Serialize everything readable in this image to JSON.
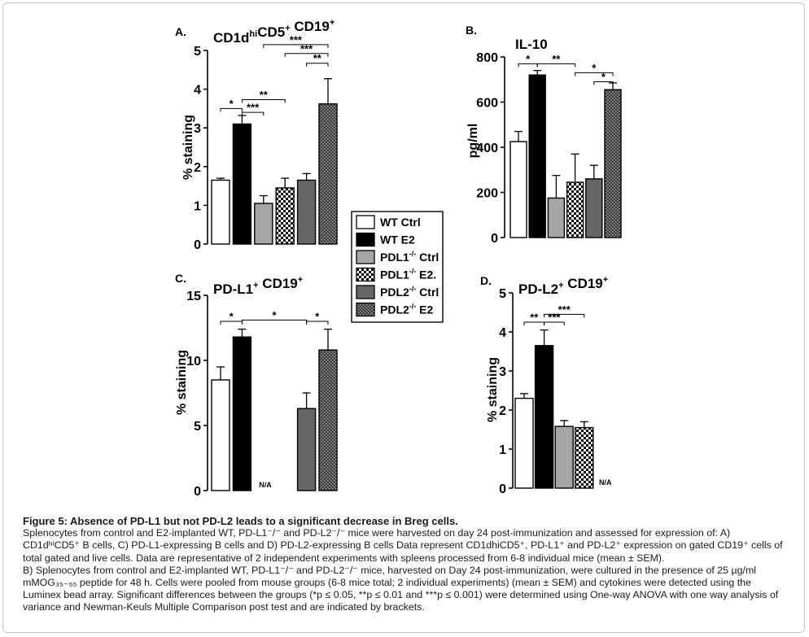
{
  "colors": {
    "wt_ctrl": "#ffffff",
    "wt_e2": "#000000",
    "pdl1_ctrl": "#a6a6a6",
    "pdl1_e2": "checker",
    "pdl2_ctrl": "#666666",
    "pdl2_e2": "dotted-dark"
  },
  "legend": {
    "items": [
      {
        "key": "wt_ctrl",
        "label": "WT Ctrl",
        "sup": "",
        "label2": ""
      },
      {
        "key": "wt_e2",
        "label": "WT  E2",
        "sup": "",
        "label2": ""
      },
      {
        "key": "pdl1_ctrl",
        "label": "PDL1",
        "sup": "-/-",
        "label2": " Ctrl"
      },
      {
        "key": "pdl1_e2",
        "label": "PDL1",
        "sup": "-/-",
        "label2": " E2."
      },
      {
        "key": "pdl2_ctrl",
        "label": "PDL2",
        "sup": "-/-",
        "label2": " Ctrl"
      },
      {
        "key": "pdl2_e2",
        "label": "PDL2",
        "sup": "-/-",
        "label2": " E2"
      }
    ]
  },
  "chart_data": [
    {
      "panel": "A.",
      "type": "bar",
      "title_parts": [
        {
          "t": "CD1d"
        },
        {
          "t": "hi",
          "sup": true
        },
        {
          "t": "CD5"
        },
        {
          "t": "+",
          "sup": true
        },
        {
          "t": " CD19"
        },
        {
          "t": "+",
          "sup": true
        }
      ],
      "ylabel": "% staining",
      "ylim": [
        0,
        5
      ],
      "yticks": [
        0,
        1,
        2,
        3,
        4,
        5
      ],
      "categories": [
        "WT Ctrl",
        "WT E2",
        "PDL1-/- Ctrl",
        "PDL1-/- E2",
        "PDL2-/- Ctrl",
        "PDL2-/- E2"
      ],
      "keys": [
        "wt_ctrl",
        "wt_e2",
        "pdl1_ctrl",
        "pdl1_e2",
        "pdl2_ctrl",
        "pdl2_e2"
      ],
      "values": [
        1.65,
        3.1,
        1.05,
        1.45,
        1.65,
        3.62
      ],
      "errors": [
        0.05,
        0.22,
        0.2,
        0.25,
        0.17,
        0.65
      ],
      "na": [],
      "brackets": [
        {
          "from": 0,
          "to": 1,
          "level": 3.5,
          "label": "*"
        },
        {
          "from": 1,
          "to": 2,
          "level": 3.4,
          "label": "***"
        },
        {
          "from": 1,
          "to": 3,
          "level": 3.73,
          "label": "**"
        },
        {
          "from": 4,
          "to": 5,
          "level": 4.67,
          "label": "**"
        },
        {
          "from": 3,
          "to": 5,
          "level": 4.92,
          "label": "***"
        },
        {
          "from": 2,
          "to": 5,
          "level": 5.15,
          "label": "***"
        }
      ]
    },
    {
      "panel": "B.",
      "type": "bar",
      "title_parts": [
        {
          "t": "IL-10"
        }
      ],
      "ylabel": "pg/ml",
      "ylim": [
        0,
        800
      ],
      "yticks": [
        0,
        200,
        400,
        600,
        800
      ],
      "categories": [
        "WT Ctrl",
        "WT E2",
        "PDL1-/- Ctrl",
        "PDL1-/- E2",
        "PDL2-/- Ctrl",
        "PDL2-/- E2"
      ],
      "keys": [
        "wt_ctrl",
        "wt_e2",
        "pdl1_ctrl",
        "pdl1_e2",
        "pdl2_ctrl",
        "pdl2_e2"
      ],
      "values": [
        425,
        720,
        175,
        245,
        260,
        655
      ],
      "errors": [
        45,
        20,
        100,
        125,
        60,
        30
      ],
      "na": [],
      "brackets": [
        {
          "from": 0,
          "to": 1,
          "level": 770,
          "label": "*"
        },
        {
          "from": 1,
          "to": 3,
          "level": 770,
          "label": "**"
        },
        {
          "from": 3,
          "to": 5,
          "level": 730,
          "label": "*"
        },
        {
          "from": 4,
          "to": 5,
          "level": 690,
          "label": "*"
        }
      ]
    },
    {
      "panel": "C.",
      "type": "bar",
      "title_parts": [
        {
          "t": "PD-L1"
        },
        {
          "t": "+",
          "sup": true
        },
        {
          "t": " CD19"
        },
        {
          "t": "+",
          "sup": true
        }
      ],
      "ylabel": "% staining",
      "ylim": [
        0,
        15
      ],
      "yticks": [
        0,
        5,
        10,
        15
      ],
      "categories": [
        "WT Ctrl",
        "WT E2",
        "PDL1-/- Ctrl",
        "PDL1-/- E2",
        "PDL2-/- Ctrl",
        "PDL2-/- E2"
      ],
      "keys": [
        "wt_ctrl",
        "wt_e2",
        "pdl1_ctrl",
        "pdl1_e2",
        "pdl2_ctrl",
        "pdl2_e2"
      ],
      "values": [
        8.5,
        11.8,
        null,
        null,
        6.3,
        10.8
      ],
      "errors": [
        1.0,
        0.6,
        0,
        0,
        1.2,
        1.6
      ],
      "na": [
        {
          "at": 2.5,
          "label": "N/A"
        }
      ],
      "brackets": [
        {
          "from": 0,
          "to": 1,
          "level": 13.0,
          "label": "*"
        },
        {
          "from": 1,
          "to": 4,
          "level": 13.1,
          "label": "*"
        },
        {
          "from": 4,
          "to": 5,
          "level": 13.0,
          "label": "*"
        }
      ]
    },
    {
      "panel": "D.",
      "type": "bar",
      "title_parts": [
        {
          "t": "PD-L2"
        },
        {
          "t": "+",
          "sup": true
        },
        {
          "t": " CD19"
        },
        {
          "t": "+",
          "sup": true
        }
      ],
      "ylabel": "% staining",
      "ylim": [
        0,
        5
      ],
      "yticks": [
        0,
        1,
        2,
        3,
        4,
        5
      ],
      "categories": [
        "WT Ctrl",
        "WT E2",
        "PDL1-/- Ctrl",
        "PDL1-/- E2",
        "PDL2-/- Ctrl",
        "PDL2-/- E2"
      ],
      "keys": [
        "wt_ctrl",
        "wt_e2",
        "pdl1_ctrl",
        "pdl1_e2",
        "pdl2_ctrl",
        "pdl2_e2"
      ],
      "values": [
        2.3,
        3.65,
        1.58,
        1.55,
        null,
        null
      ],
      "errors": [
        0.12,
        0.4,
        0.15,
        0.15,
        0,
        0
      ],
      "na": [
        {
          "at": 4.5,
          "label": "N/A"
        }
      ],
      "brackets": [
        {
          "from": 0,
          "to": 1,
          "level": 4.25,
          "label": "**"
        },
        {
          "from": 1,
          "to": 2,
          "level": 4.25,
          "label": "***"
        },
        {
          "from": 1,
          "to": 3,
          "level": 4.45,
          "label": "***"
        }
      ]
    }
  ],
  "caption": {
    "title": "Figure 5: Absence of PD-L1 but not PD-L2 leads to a significant decrease in Breg cells.",
    "line1": "Splenocytes from control and E2-implanted WT, PD-L1⁻/⁻ and PD-L2⁻/⁻ mice were harvested on day 24 post-immunization and assessed for expression of: A) CD1dʰⁱCD5⁺ B cells, C) PD-L1-expressing B cells and D) PD-L2-expressing B cells Data represent CD1dhiCD5⁺, PD-L1⁺ and PD-L2⁺ expression on gated CD19⁺ cells of total gated and live cells. Data are representative of 2 independent experiments with spleens processed from 6-8 individual mice (mean ± SEM).",
    "line2": "B) Splenocytes from control and E2-implanted WT, PD-L1⁻/⁻ and PD-L2⁻/⁻ mice, harvested on Day 24 post-immunization, were cultured in the presence of 25 µg/ml mMOG₃₅₋₅₅ peptide for 48 h. Cells were pooled from mouse groups (6-8 mice total; 2 individual experiments) (mean ± SEM) and cytokines were detected using the Luminex bead array. Significant differences between the groups (*p ≤ 0.05, **p ≤ 0.01 and ***p ≤ 0.001) were determined using One-way ANOVA with one way analysis of variance and Newman-Keuls Multiple Comparison post test and are indicated by brackets."
  }
}
